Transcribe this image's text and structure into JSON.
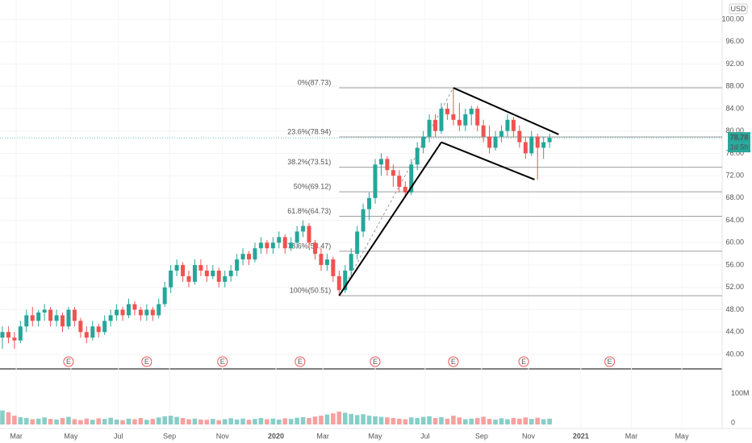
{
  "chart_data": {
    "type": "candlestick",
    "currency": "USD",
    "last_price_label": "78.78",
    "countdown": "1d 5h",
    "last_price": 78.78,
    "up_color": "#26a69a",
    "down_color": "#ef5350",
    "ylim": [
      37.4,
      103.46
    ],
    "yticks": [
      {
        "value": 40,
        "label": "40.00"
      },
      {
        "value": 44,
        "label": "44.00"
      },
      {
        "value": 48,
        "label": "48.00"
      },
      {
        "value": 52,
        "label": "52.00"
      },
      {
        "value": 56,
        "label": "56.00"
      },
      {
        "value": 60,
        "label": "60.00"
      },
      {
        "value": 64,
        "label": "64.00"
      },
      {
        "value": 68,
        "label": "68.00"
      },
      {
        "value": 72,
        "label": "72.00"
      },
      {
        "value": 76,
        "label": "76.00"
      },
      {
        "value": 80,
        "label": "80.00"
      },
      {
        "value": 84,
        "label": "84.00"
      },
      {
        "value": 88,
        "label": "88.00"
      },
      {
        "value": 92,
        "label": "92.00"
      },
      {
        "value": 96,
        "label": "96.00"
      },
      {
        "value": 100,
        "label": "100.00"
      }
    ],
    "xlim": [
      -0.4,
      119.7
    ],
    "xticks": [
      {
        "value": 2.3,
        "label": "Mar"
      },
      {
        "value": 11.4,
        "label": "May"
      },
      {
        "value": 19.3,
        "label": "Jul"
      },
      {
        "value": 27.8,
        "label": "Sep"
      },
      {
        "value": 36.6,
        "label": "Nov"
      },
      {
        "value": 45.5,
        "label": "2020"
      },
      {
        "value": 53.3,
        "label": "Mar"
      },
      {
        "value": 62,
        "label": "May"
      },
      {
        "value": 70.3,
        "label": "Jul"
      },
      {
        "value": 79.7,
        "label": "Sep"
      },
      {
        "value": 87.5,
        "label": "Nov"
      },
      {
        "value": 96.2,
        "label": "2021"
      },
      {
        "value": 104.6,
        "label": "Mar"
      },
      {
        "value": 113,
        "label": "May"
      }
    ],
    "candles": [
      [
        43,
        45,
        41,
        44
      ],
      [
        44,
        45,
        42,
        43
      ],
      [
        43,
        44,
        41,
        42.5
      ],
      [
        42.5,
        46,
        42,
        45
      ],
      [
        45,
        48,
        44,
        47
      ],
      [
        47,
        48.5,
        45,
        46
      ],
      [
        46,
        48,
        45,
        47.5
      ],
      [
        47.5,
        49,
        46,
        48
      ],
      [
        48,
        48.5,
        45,
        46
      ],
      [
        46,
        48,
        45,
        47
      ],
      [
        47,
        47.5,
        44,
        45
      ],
      [
        45,
        48.5,
        44.5,
        48
      ],
      [
        48,
        48.5,
        45,
        46
      ],
      [
        46,
        46.5,
        43,
        44
      ],
      [
        44,
        45,
        42,
        43
      ],
      [
        43,
        46,
        42.5,
        45
      ],
      [
        45,
        45.5,
        43,
        44
      ],
      [
        44,
        47,
        43.5,
        46
      ],
      [
        46,
        48,
        45,
        47
      ],
      [
        47,
        49,
        46,
        48
      ],
      [
        48,
        48.5,
        46,
        47
      ],
      [
        47,
        50,
        46.5,
        49
      ],
      [
        49,
        49.5,
        47,
        48
      ],
      [
        48,
        48.5,
        46,
        47
      ],
      [
        47,
        49,
        46,
        48
      ],
      [
        48,
        48.5,
        46,
        47
      ],
      [
        47,
        50,
        46.5,
        49
      ],
      [
        49,
        53,
        48.5,
        52
      ],
      [
        52,
        56,
        51,
        55
      ],
      [
        55,
        57,
        54,
        56
      ],
      [
        56,
        56.5,
        53,
        54
      ],
      [
        54,
        55,
        52,
        53
      ],
      [
        53,
        57,
        52.5,
        56
      ],
      [
        56,
        57,
        54,
        55
      ],
      [
        55,
        56,
        53,
        54
      ],
      [
        54,
        56,
        53.5,
        55
      ],
      [
        55,
        55.5,
        52,
        53
      ],
      [
        53,
        55,
        52,
        54
      ],
      [
        54,
        56,
        53,
        55
      ],
      [
        55,
        58,
        54,
        57
      ],
      [
        57,
        59,
        56,
        58
      ],
      [
        58,
        58.5,
        56,
        57
      ],
      [
        57,
        60,
        56.5,
        59
      ],
      [
        59,
        61,
        58,
        60
      ],
      [
        60,
        60.5,
        58,
        59
      ],
      [
        59,
        61,
        58,
        60
      ],
      [
        60,
        62,
        59,
        61
      ],
      [
        61,
        61.5,
        58,
        59
      ],
      [
        59,
        61,
        58.5,
        60
      ],
      [
        60,
        63,
        59,
        62
      ],
      [
        62,
        64,
        61,
        63
      ],
      [
        63,
        63.5,
        59,
        60
      ],
      [
        60,
        60.5,
        57,
        58
      ],
      [
        58,
        59,
        55,
        56
      ],
      [
        56,
        58,
        55,
        57
      ],
      [
        57,
        57.5,
        53,
        54
      ],
      [
        54,
        55,
        50.51,
        51.5
      ],
      [
        51.5,
        56,
        51,
        55
      ],
      [
        55,
        59,
        54,
        58
      ],
      [
        58,
        63,
        57,
        62
      ],
      [
        62,
        67,
        61,
        66
      ],
      [
        66,
        69,
        64,
        68
      ],
      [
        68,
        75,
        67,
        74
      ],
      [
        74,
        76,
        72,
        75
      ],
      [
        75,
        75.5,
        72,
        73
      ],
      [
        73,
        74,
        70,
        72
      ],
      [
        72,
        73,
        69,
        70
      ],
      [
        70,
        71,
        68,
        69
      ],
      [
        69,
        75,
        68.5,
        74
      ],
      [
        74,
        78,
        73,
        77
      ],
      [
        77,
        80,
        76,
        79
      ],
      [
        79,
        83,
        78,
        82
      ],
      [
        82,
        83,
        79,
        80
      ],
      [
        80,
        85,
        79.5,
        84
      ],
      [
        84,
        85,
        82,
        83
      ],
      [
        83,
        87.73,
        81,
        82
      ],
      [
        82,
        85,
        80,
        81
      ],
      [
        81,
        84,
        80,
        83
      ],
      [
        83,
        84.5,
        81,
        84
      ],
      [
        84,
        84.5,
        80,
        81
      ],
      [
        81,
        82,
        78,
        79
      ],
      [
        79,
        81,
        76,
        77
      ],
      [
        77,
        80,
        76.5,
        79
      ],
      [
        79,
        81,
        78,
        80
      ],
      [
        80,
        83,
        79,
        82
      ],
      [
        82,
        82.5,
        79,
        80
      ],
      [
        80,
        81,
        77,
        78
      ],
      [
        78,
        79,
        75,
        76
      ],
      [
        76,
        80,
        75.5,
        79
      ],
      [
        79,
        79.5,
        71.3,
        77
      ],
      [
        77,
        79,
        75,
        78
      ],
      [
        78,
        79.5,
        77,
        78.78
      ]
    ],
    "volume": [
      48,
      42,
      30,
      25,
      22,
      18,
      20,
      24,
      19,
      17,
      22,
      26,
      18,
      15,
      20,
      16,
      21,
      19,
      23,
      17,
      15,
      20,
      18,
      22,
      16,
      19,
      24,
      28,
      30,
      26,
      22,
      18,
      20,
      17,
      16,
      19,
      15,
      18,
      21,
      17,
      20,
      16,
      19,
      22,
      18,
      20,
      17,
      21,
      19,
      23,
      25,
      22,
      27,
      30,
      34,
      38,
      44,
      40,
      36,
      32,
      35,
      30,
      28,
      26,
      24,
      22,
      20,
      18,
      24,
      22,
      26,
      28,
      22,
      25,
      20,
      30,
      24,
      18,
      20,
      22,
      26,
      19,
      17,
      21,
      18,
      22,
      20,
      24,
      19,
      23,
      18,
      20
    ],
    "volume_ylim": [
      0,
      190
    ],
    "volume_ticks": [
      {
        "value": 0,
        "label": "0"
      },
      {
        "value": 100,
        "label": "100M"
      }
    ],
    "fib_levels": [
      {
        "value": 87.73,
        "label": "0%(87.73)"
      },
      {
        "value": 78.94,
        "label": "23.6%(78.94)"
      },
      {
        "value": 73.51,
        "label": "38.2%(73.51)"
      },
      {
        "value": 69.12,
        "label": "50%(69.12)"
      },
      {
        "value": 64.73,
        "label": "61.8%(64.73)"
      },
      {
        "value": 58.47,
        "label": "78.6%(58.47)"
      },
      {
        "value": 50.51,
        "label": "100%(50.51)"
      }
    ],
    "fib_start": 56,
    "trend_lines": [
      [
        [
          56,
          50.51
        ],
        [
          73,
          78
        ]
      ],
      [
        [
          75,
          87.73
        ],
        [
          92.5,
          79.4
        ]
      ],
      [
        [
          73,
          78
        ],
        [
          88.5,
          71.3
        ]
      ]
    ],
    "fib_diagonal": [
      [
        56,
        50.51
      ],
      [
        75,
        87.73
      ]
    ],
    "earnings_marker": "E",
    "earnings": [
      11,
      24,
      36.6,
      49.5,
      62,
      75,
      86.7,
      101
    ]
  }
}
